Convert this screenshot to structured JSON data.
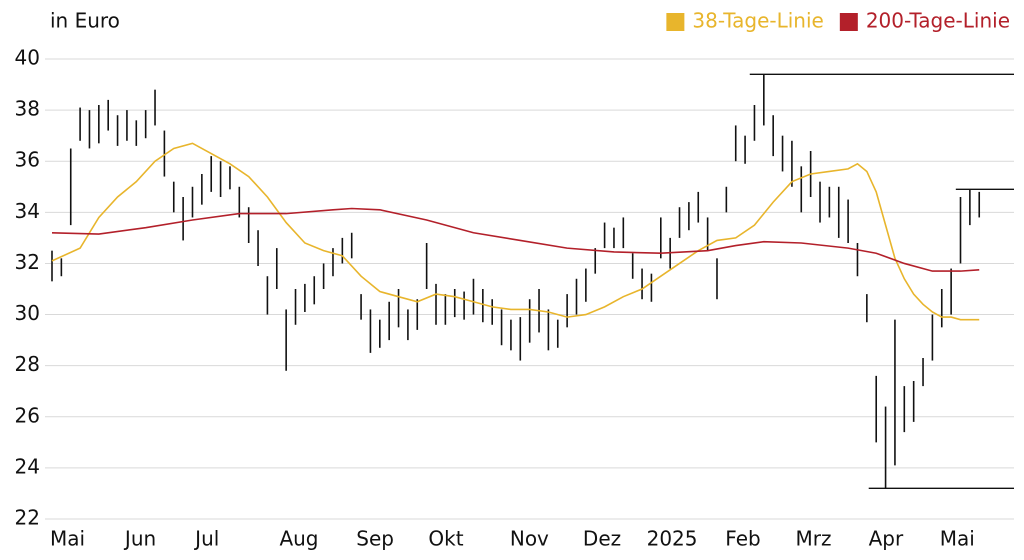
{
  "chart_data": {
    "type": "range-bar",
    "ylabel": "in Euro",
    "xlim": [
      0,
      100
    ],
    "ylim": [
      22,
      40
    ],
    "yticks": [
      22,
      24,
      26,
      28,
      30,
      32,
      34,
      36,
      38,
      40
    ],
    "xticks": [
      {
        "value": 0,
        "label": "Mai"
      },
      {
        "value": 8,
        "label": "Jun"
      },
      {
        "value": 15.5,
        "label": "Jul"
      },
      {
        "value": 24.5,
        "label": "Aug"
      },
      {
        "value": 32.7,
        "label": "Sep"
      },
      {
        "value": 40.4,
        "label": "Okt"
      },
      {
        "value": 49.1,
        "label": "Nov"
      },
      {
        "value": 56.9,
        "label": "Dez"
      },
      {
        "value": 63.7,
        "label": "2025"
      },
      {
        "value": 72.1,
        "label": "Feb"
      },
      {
        "value": 79.6,
        "label": "Mrz"
      },
      {
        "value": 87.4,
        "label": "Apr"
      },
      {
        "value": 95,
        "label": "Mai"
      }
    ],
    "grid": true,
    "legend": "top-right",
    "bars": {
      "color": "#111111",
      "x": [
        0,
        1,
        2,
        3,
        4,
        5,
        6,
        7,
        8,
        9,
        10,
        11,
        12,
        13,
        14,
        15,
        16,
        17,
        18,
        19,
        20,
        21,
        22,
        23,
        24,
        25,
        26,
        27,
        28,
        29,
        30,
        31,
        32,
        33,
        34,
        35,
        36,
        37,
        38,
        39,
        40,
        41,
        42,
        43,
        44,
        45,
        46,
        47,
        48,
        49,
        50,
        51,
        52,
        53,
        54,
        55,
        56,
        57,
        58,
        59,
        60,
        61,
        62,
        63,
        64,
        65,
        66,
        67,
        68,
        69,
        70,
        71,
        72,
        73,
        74,
        75,
        76,
        77,
        78,
        79,
        80,
        81,
        82,
        83,
        84,
        85,
        86,
        87,
        88,
        89,
        90,
        91,
        92,
        93,
        94,
        95,
        96,
        97,
        98,
        99
      ],
      "high": [
        32.5,
        32.2,
        36.5,
        38.1,
        38.0,
        38.2,
        38.4,
        37.8,
        38.0,
        37.6,
        38.0,
        38.8,
        37.2,
        35.2,
        34.6,
        35.0,
        35.5,
        36.2,
        36.0,
        35.8,
        35.0,
        34.2,
        33.3,
        31.5,
        32.6,
        30.2,
        31.0,
        31.2,
        31.5,
        32.0,
        32.6,
        33.0,
        33.2,
        30.8,
        30.2,
        29.8,
        30.5,
        31.0,
        30.2,
        30.6,
        32.8,
        31.2,
        30.8,
        31.0,
        30.9,
        31.4,
        31.0,
        30.6,
        30.2,
        29.8,
        29.9,
        30.6,
        31.0,
        30.2,
        29.8,
        30.8,
        31.4,
        31.8,
        32.6,
        33.6,
        33.4,
        33.8,
        32.4,
        31.8,
        31.6,
        33.8,
        33.0,
        34.2,
        34.4,
        34.8,
        33.8,
        32.2,
        35.0,
        37.4,
        37.0,
        38.2,
        39.4,
        37.8,
        37.0,
        36.8,
        35.8,
        36.4,
        35.2,
        35.0,
        35.0,
        34.5,
        32.8,
        30.8,
        27.6,
        26.4,
        29.8,
        27.2,
        27.4,
        28.3,
        30.0,
        31.0,
        31.8,
        34.6,
        34.9,
        34.8
      ],
      "low": [
        31.3,
        31.5,
        33.5,
        36.8,
        36.5,
        36.7,
        37.2,
        36.6,
        36.8,
        36.6,
        36.9,
        37.4,
        35.4,
        34.0,
        32.9,
        33.8,
        34.3,
        34.8,
        34.6,
        34.9,
        33.8,
        32.8,
        31.9,
        30.0,
        31.0,
        27.8,
        29.6,
        30.1,
        30.4,
        31.0,
        31.5,
        32.0,
        32.2,
        29.8,
        28.5,
        28.7,
        29.0,
        29.5,
        29.0,
        29.4,
        31.0,
        29.6,
        29.6,
        29.9,
        29.8,
        30.0,
        29.7,
        29.6,
        28.8,
        28.6,
        28.2,
        28.9,
        29.3,
        28.6,
        28.7,
        29.5,
        30.0,
        30.5,
        31.6,
        32.6,
        32.6,
        32.6,
        31.4,
        30.6,
        30.5,
        32.2,
        31.8,
        33.0,
        33.3,
        33.6,
        32.5,
        30.6,
        34.0,
        36.0,
        35.9,
        36.8,
        37.4,
        36.2,
        35.6,
        35.0,
        34.0,
        34.6,
        33.6,
        33.8,
        33.0,
        32.8,
        31.5,
        29.7,
        25.0,
        23.2,
        24.1,
        25.4,
        25.8,
        27.2,
        28.2,
        29.5,
        30.0,
        32.0,
        33.5,
        33.8
      ]
    },
    "series": [
      {
        "name": "38-Tage-Linie",
        "color": "#e8b52c",
        "x": [
          0,
          3,
          5,
          7,
          9,
          11,
          13,
          15,
          17,
          19,
          21,
          23,
          25,
          27,
          29,
          31,
          33,
          35,
          37,
          39,
          41,
          43,
          45,
          47,
          49,
          51,
          53,
          55,
          57,
          59,
          61,
          63,
          65,
          67,
          69,
          71,
          73,
          75,
          77,
          79,
          81,
          83,
          85,
          86,
          87,
          88,
          89,
          90,
          91,
          92,
          93,
          94,
          95,
          96,
          97,
          99
        ],
        "values": [
          32.1,
          32.6,
          33.8,
          34.6,
          35.2,
          36.0,
          36.5,
          36.7,
          36.3,
          35.9,
          35.4,
          34.6,
          33.6,
          32.8,
          32.5,
          32.3,
          31.5,
          30.9,
          30.7,
          30.5,
          30.8,
          30.7,
          30.5,
          30.3,
          30.2,
          30.2,
          30.1,
          29.9,
          30.0,
          30.3,
          30.7,
          31.0,
          31.5,
          32.0,
          32.5,
          32.9,
          33.0,
          33.5,
          34.4,
          35.2,
          35.5,
          35.6,
          35.7,
          35.9,
          35.6,
          34.8,
          33.5,
          32.2,
          31.4,
          30.8,
          30.4,
          30.1,
          29.9,
          29.9,
          29.8,
          29.8
        ]
      },
      {
        "name": "200-Tage-Linie",
        "color": "#b3202a",
        "x": [
          0,
          5,
          10,
          15,
          20,
          25,
          30,
          32,
          35,
          40,
          45,
          50,
          55,
          60,
          65,
          70,
          73,
          76,
          80,
          85,
          88,
          91,
          94,
          97,
          99
        ],
        "values": [
          33.2,
          33.15,
          33.4,
          33.7,
          33.95,
          33.95,
          34.1,
          34.15,
          34.1,
          33.7,
          33.2,
          32.9,
          32.6,
          32.45,
          32.4,
          32.5,
          32.7,
          32.85,
          32.8,
          32.6,
          32.4,
          32.0,
          31.7,
          31.7,
          31.75
        ]
      }
    ],
    "reference_lines": [
      {
        "value": 39.4,
        "x": 74.5
      },
      {
        "value": 34.9,
        "x": 96.5
      },
      {
        "value": 23.2,
        "x": 87.2
      }
    ]
  }
}
